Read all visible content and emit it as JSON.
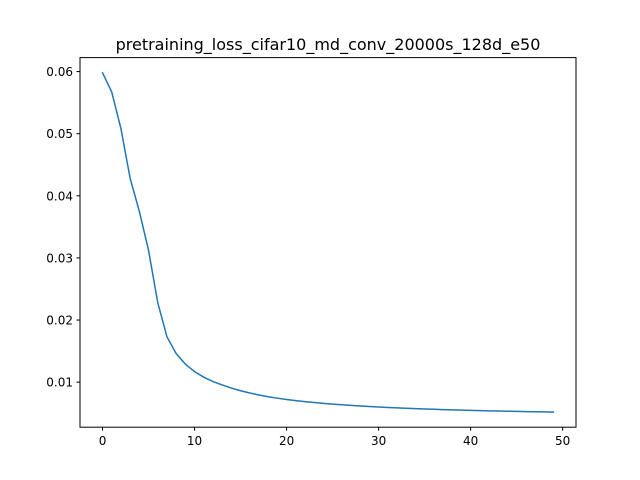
{
  "chart_data": {
    "type": "line",
    "title": "pretraining_loss_cifar10_md_conv_20000s_128d_e50",
    "xlabel": "",
    "ylabel": "",
    "xlim": [
      -2.45,
      51.45
    ],
    "ylim": [
      0.00275,
      0.06225
    ],
    "xticks": [
      0,
      10,
      20,
      30,
      40,
      50
    ],
    "xtick_labels": [
      "0",
      "10",
      "20",
      "30",
      "40",
      "50"
    ],
    "yticks": [
      0.01,
      0.02,
      0.03,
      0.04,
      0.05,
      0.06
    ],
    "ytick_labels": [
      "0.01",
      "0.02",
      "0.03",
      "0.04",
      "0.05",
      "0.06"
    ],
    "grid": false,
    "line_color": "#1f77b4",
    "series": [
      {
        "x": [
          0,
          1,
          2,
          3,
          4,
          5,
          6,
          7,
          8,
          9,
          10,
          11,
          12,
          13,
          14,
          15,
          16,
          17,
          18,
          19,
          20,
          21,
          22,
          23,
          24,
          25,
          26,
          27,
          28,
          29,
          30,
          31,
          32,
          33,
          34,
          35,
          36,
          37,
          38,
          39,
          40,
          41,
          42,
          43,
          44,
          45,
          46,
          47,
          48,
          49
        ],
        "values": [
          0.0598,
          0.0567,
          0.0508,
          0.0428,
          0.0375,
          0.0312,
          0.0228,
          0.0173,
          0.0146,
          0.0129,
          0.0117,
          0.0108,
          0.0101,
          0.00955,
          0.00905,
          0.00862,
          0.00825,
          0.00793,
          0.00766,
          0.00742,
          0.00721,
          0.00703,
          0.00687,
          0.00672,
          0.00659,
          0.00647,
          0.00636,
          0.00626,
          0.00617,
          0.00608,
          0.006,
          0.00593,
          0.00586,
          0.0058,
          0.00574,
          0.00568,
          0.00563,
          0.00558,
          0.00554,
          0.0055,
          0.00546,
          0.00542,
          0.00538,
          0.00535,
          0.00532,
          0.00529,
          0.00526,
          0.00523,
          0.00521,
          0.00518
        ]
      }
    ]
  }
}
